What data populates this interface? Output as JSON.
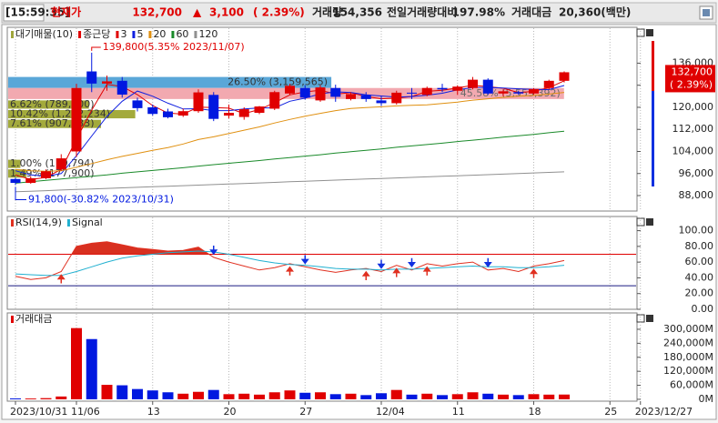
{
  "header": {
    "time": "[15:59:35]",
    "price_label": "현재가",
    "price": "132,700",
    "arrow": "▲",
    "change": "3,100",
    "change_pct": "( 2.39%)",
    "volume_label": "거래량",
    "volume": "154,356",
    "ratio_label": "전일거래량대비",
    "ratio": "197.98%",
    "amount_label": "거래대금",
    "amount": "20,360(백만)"
  },
  "chart_data": [
    {
      "type": "candlestick",
      "name": "종근당",
      "up_color": "#e00000",
      "down_color": "#0018e0",
      "open": [
        94000,
        92600,
        94300,
        97500,
        104000,
        133000,
        128600,
        129600,
        122500,
        120000,
        118500,
        117000,
        118600,
        124500,
        117000,
        116500,
        118000,
        119500,
        125000,
        127000,
        122500,
        127000,
        123000,
        124500,
        122500,
        121500,
        125300,
        124500,
        127000,
        126000,
        127000,
        130000,
        125000,
        125500,
        125000,
        127000,
        129600
      ],
      "high": [
        94500,
        95000,
        97500,
        103000,
        128500,
        139800,
        131500,
        131000,
        123500,
        121000,
        119500,
        119500,
        126500,
        125500,
        121000,
        120000,
        120500,
        126000,
        128500,
        128000,
        128000,
        128200,
        125500,
        125500,
        124000,
        126000,
        127000,
        127500,
        128500,
        128000,
        131000,
        130500,
        126500,
        126000,
        127000,
        130000,
        133000
      ],
      "low": [
        91800,
        92300,
        94000,
        97000,
        102000,
        125500,
        126000,
        123500,
        118500,
        117000,
        116000,
        116500,
        118000,
        115000,
        116000,
        115500,
        117500,
        119000,
        124500,
        122800,
        122000,
        122000,
        122500,
        122000,
        120500,
        121000,
        123000,
        124000,
        125500,
        124500,
        126500,
        124500,
        124000,
        124500,
        124500,
        126500,
        129000
      ],
      "close": [
        92600,
        94300,
        96800,
        101500,
        127000,
        128600,
        129400,
        124600,
        119700,
        117600,
        116400,
        118600,
        125400,
        115800,
        118000,
        119300,
        120300,
        125500,
        127800,
        123500,
        127200,
        123800,
        124800,
        123000,
        121500,
        125300,
        125000,
        127000,
        126500,
        127500,
        130000,
        125000,
        125800,
        125000,
        126600,
        129600,
        132700
      ],
      "ma": [
        {
          "name": "3",
          "color": "#e00000",
          "values": [
            95500,
            93800,
            94600,
            97500,
            108400,
            119000,
            128300,
            127500,
            124600,
            120600,
            117900,
            117500,
            120100,
            119900,
            119700,
            117700,
            119200,
            121700,
            124500,
            125600,
            126200,
            124800,
            125300,
            123900,
            123100,
            123300,
            123900,
            125800,
            126200,
            127000,
            128000,
            127500,
            126900,
            125300,
            125800,
            127100,
            129600
          ]
        },
        {
          "name": "5",
          "color": "#1020e0",
          "values": [
            97000,
            95500,
            95000,
            96000,
            102400,
            109600,
            116700,
            122200,
            125900,
            124000,
            121500,
            119400,
            119500,
            118800,
            118800,
            119400,
            119800,
            119800,
            122200,
            123300,
            124900,
            125600,
            125400,
            124500,
            124100,
            123700,
            123900,
            124400,
            125100,
            126300,
            127200,
            127200,
            127000,
            126700,
            126500,
            126400,
            127900
          ]
        },
        {
          "name": "20",
          "color": "#e09010",
          "values": [
            97500,
            97000,
            96800,
            97000,
            98300,
            99600,
            101000,
            102200,
            103300,
            104400,
            105400,
            106700,
            108300,
            109300,
            110500,
            111700,
            112900,
            114300,
            115600,
            116800,
            117800,
            118800,
            119600,
            119900,
            120200,
            120500,
            120700,
            120900,
            121400,
            121900,
            122600,
            123100,
            123600,
            124000,
            124300,
            124800,
            125400
          ]
        },
        {
          "name": "60",
          "color": "#1a8a2a",
          "values": [
            92500,
            93000,
            93500,
            94000,
            94500,
            95000,
            95500,
            96100,
            96600,
            97100,
            97600,
            98100,
            98700,
            99200,
            99700,
            100200,
            100700,
            101300,
            101800,
            102300,
            102800,
            103400,
            103900,
            104400,
            104900,
            105500,
            106000,
            106500,
            107000,
            107600,
            108100,
            108600,
            109200,
            109700,
            110200,
            110800,
            111300
          ]
        },
        {
          "name": "120",
          "color": "#909090",
          "values": [
            89400,
            89600,
            89800,
            90000,
            90200,
            90400,
            90600,
            90800,
            91000,
            91200,
            91400,
            91600,
            91800,
            92000,
            92200,
            92400,
            92600,
            92800,
            93000,
            93200,
            93400,
            93600,
            93800,
            94000,
            94200,
            94400,
            94600,
            94800,
            95000,
            95200,
            95400,
            95600,
            95800,
            96000,
            96200,
            96400,
            96600
          ]
        }
      ],
      "profile": {
        "name": "대기매물(10)",
        "color": "#9fa53b",
        "bars": [
          {
            "low": 127000,
            "high": 131000,
            "value": 26.5,
            "label": "26.50% (3,159,565)",
            "color": "#5aa7d8"
          },
          {
            "low": 123000,
            "high": 127000,
            "value": 45.58,
            "label": "45.58% (5,553,392)",
            "color": "#f2a9b0"
          },
          {
            "low": 119500,
            "high": 122500,
            "value": 6.62,
            "label": "6.62% (789,300)",
            "color": "#a3aa3c"
          },
          {
            "low": 116000,
            "high": 119000,
            "value": 10.42,
            "label": "10.42% (1,242,234)",
            "color": "#a3aa3c"
          },
          {
            "low": 112500,
            "high": 115500,
            "value": 7.61,
            "label": "7.61% (907,933)",
            "color": "#a3aa3c"
          },
          {
            "low": 98000,
            "high": 101000,
            "value": 1.0,
            "label": "1.00% (119,794)",
            "color": "#a3aa3c"
          },
          {
            "low": 94500,
            "high": 97500,
            "value": 1.49,
            "label": "1.49% (177,900)",
            "color": "#a3aa3c"
          }
        ]
      },
      "max_label": "139,800(5.35% 2023/11/07)",
      "min_label": "91,800(-30.82% 2023/10/31)",
      "current_label": "132,700",
      "current_change": "( 2.39%)",
      "ylim": [
        82400,
        149000
      ],
      "yticks": [
        {
          "value": 136000,
          "label": "136,000"
        },
        {
          "value": 128000,
          "label": "128,000"
        },
        {
          "value": 120000,
          "label": "120,000"
        },
        {
          "value": 112000,
          "label": "112,000"
        },
        {
          "value": 104000,
          "label": "104,000"
        },
        {
          "value": 96000,
          "label": "96,000"
        },
        {
          "value": 88000,
          "label": "88,000"
        }
      ]
    },
    {
      "type": "line",
      "series": [
        {
          "name": "RSI(14,9)",
          "color": "#e03020",
          "values": [
            42,
            38,
            40,
            48,
            80,
            84,
            86,
            82,
            78,
            76,
            74,
            75,
            79,
            66,
            60,
            55,
            50,
            53,
            58,
            54,
            50,
            47,
            50,
            52,
            48,
            56,
            50,
            58,
            55,
            58,
            60,
            50,
            52,
            48,
            55,
            58,
            62
          ]
        },
        {
          "name": "Signal",
          "color": "#20b0d0",
          "values": [
            45,
            44,
            43,
            43,
            48,
            54,
            60,
            65,
            68,
            70,
            72,
            73,
            74,
            73,
            70,
            66,
            62,
            59,
            57,
            56,
            54,
            52,
            51,
            51,
            50,
            51,
            51,
            52,
            53,
            54,
            55,
            54,
            54,
            53,
            53,
            54,
            56
          ]
        }
      ],
      "levels": [
        {
          "value": 70,
          "color": "#e00000",
          "fill": "#d83020"
        },
        {
          "value": 30,
          "color": "#1a1a80"
        }
      ],
      "ylim": [
        0,
        118
      ],
      "yticks": [
        {
          "value": 100,
          "label": "100.00"
        },
        {
          "value": 80,
          "label": "80.00"
        },
        {
          "value": 60,
          "label": "60.00"
        },
        {
          "value": 40,
          "label": "40.00"
        },
        {
          "value": 20,
          "label": "20.00"
        },
        {
          "value": 0,
          "label": "0.00"
        }
      ]
    },
    {
      "type": "bar",
      "title": "거래대금",
      "color": "#e00000",
      "categories": [
        "2023/10/31",
        null,
        null,
        null,
        "11/06",
        null,
        null,
        null,
        null,
        "13",
        null,
        null,
        null,
        null,
        "20",
        null,
        null,
        null,
        null,
        "27",
        null,
        null,
        null,
        null,
        "12/04",
        null,
        null,
        null,
        null,
        "11",
        null,
        null,
        null,
        null,
        "18",
        null,
        null,
        null,
        null,
        "25",
        null,
        "2023/12/27"
      ],
      "values": [
        4000,
        3500,
        5000,
        12000,
        305000,
        258000,
        62000,
        60000,
        44000,
        38000,
        30000,
        24000,
        32000,
        40000,
        22000,
        24000,
        20000,
        30000,
        38000,
        28000,
        30000,
        22000,
        24000,
        18000,
        26000,
        40000,
        20000,
        24000,
        18000,
        22000,
        30000,
        24000,
        20000,
        18000,
        22000,
        20000,
        20360,
        null,
        null,
        null,
        null,
        null
      ],
      "ylim": [
        -8000,
        370000
      ],
      "yticks": [
        {
          "value": 300000,
          "label": "300,000M"
        },
        {
          "value": 240000,
          "label": "240,000M"
        },
        {
          "value": 180000,
          "label": "180,000M"
        },
        {
          "value": 120000,
          "label": "120,000M"
        },
        {
          "value": 60000,
          "label": "60,000M"
        },
        {
          "value": 0,
          "label": "0M"
        }
      ]
    }
  ]
}
